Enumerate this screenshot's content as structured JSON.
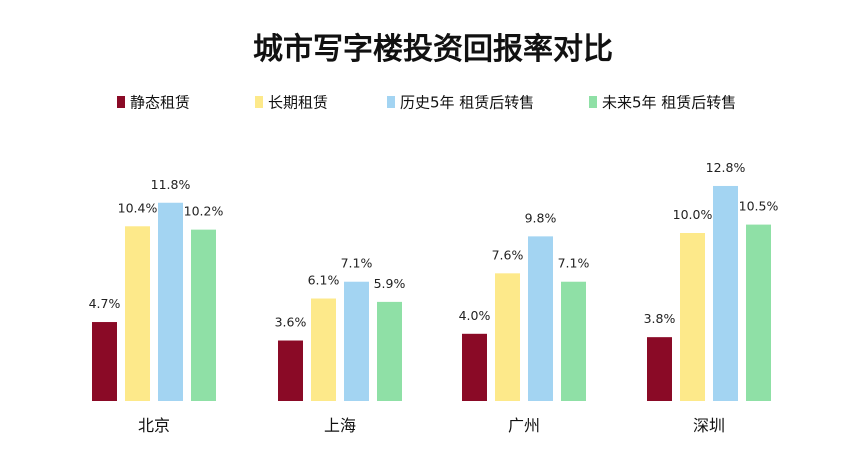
{
  "chart_data": {
    "type": "bar",
    "title": "城市写字楼投资回报率对比",
    "xlabel": "",
    "ylabel": "",
    "ylim": [
      0,
      14
    ],
    "grid": false,
    "legend_position": "top",
    "value_suffix": "%",
    "categories": [
      "北京",
      "上海",
      "广州",
      "深圳"
    ],
    "series": [
      {
        "name": "静态租赁",
        "color": "#8a0a26",
        "values": [
          4.7,
          3.6,
          4.0,
          3.8
        ]
      },
      {
        "name": "长期租赁",
        "color": "#fde98a",
        "values": [
          10.4,
          6.1,
          7.6,
          10.0
        ]
      },
      {
        "name": "历史5年 租赁后转售",
        "color": "#a3d4f2",
        "values": [
          11.8,
          7.1,
          9.8,
          12.8
        ]
      },
      {
        "name": "未来5年 租赁后转售",
        "color": "#8fe0a6",
        "values": [
          10.2,
          5.9,
          7.1,
          10.5
        ]
      }
    ]
  }
}
